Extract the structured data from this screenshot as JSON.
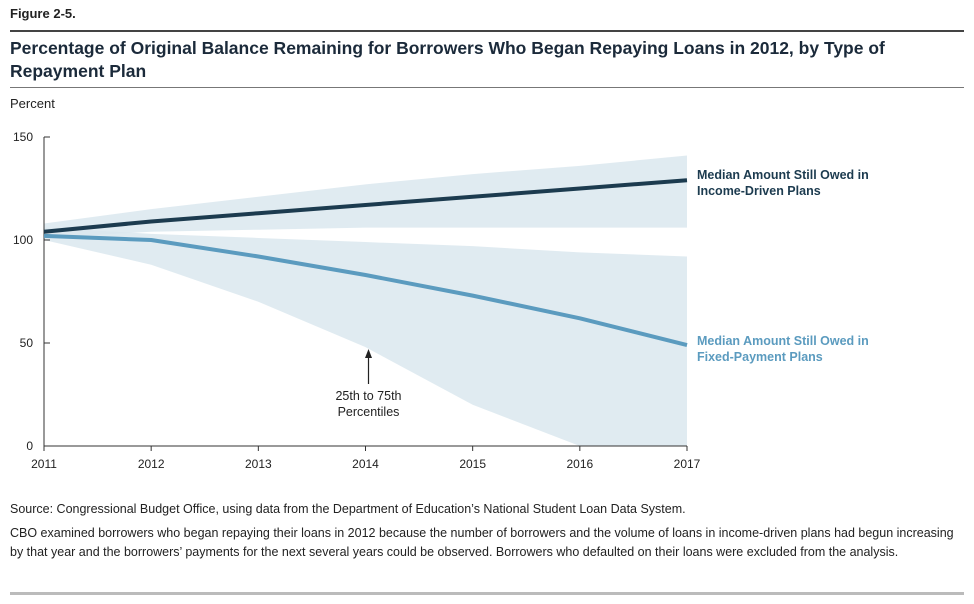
{
  "figure_label": "Figure 2-5.",
  "title": "Percentage of Original Balance Remaining for Borrowers Who Began Repaying Loans in 2012, by Type of Repayment Plan",
  "source": "Source: Congressional Budget Office, using data from the Department of Education’s National Student Loan Data System.",
  "note": "CBO examined borrowers who began repaying their loans in 2012 because the number of borrowers and the volume of loans in income-driven plans had begun increasing by that year and the borrowers’ payments for the next several years could be observed. Borrowers who defaulted on their loans were excluded from the analysis.",
  "colors": {
    "band": "#dbe7ee",
    "income_driven": "#1c3b4f",
    "fixed_payment": "#5b9bbf"
  },
  "chart_data": {
    "type": "line",
    "ylabel": "Percent",
    "xlabel": "",
    "ylim": [
      0,
      150
    ],
    "yticks": [
      0,
      50,
      100,
      150
    ],
    "x": [
      2011,
      2012,
      2013,
      2014,
      2015,
      2016,
      2017
    ],
    "series": [
      {
        "name": "Median Amount Still Owed in Income-Driven Plans",
        "label_lines": [
          "Median Amount Still Owed in",
          "Income-Driven Plans"
        ],
        "values": [
          104,
          109,
          113,
          117,
          121,
          125,
          129
        ],
        "band_upper": [
          108,
          115,
          121,
          127,
          132,
          136,
          141
        ],
        "band_lower": [
          101,
          104,
          105,
          106,
          106,
          106,
          106
        ]
      },
      {
        "name": "Median Amount Still Owed in Fixed-Payment Plans",
        "label_lines": [
          "Median Amount Still Owed in",
          "Fixed-Payment Plans"
        ],
        "values": [
          102,
          100,
          92,
          83,
          73,
          62,
          49
        ],
        "band_upper": [
          106,
          103,
          101,
          99,
          97,
          94,
          92
        ],
        "band_lower": [
          100,
          88,
          70,
          48,
          20,
          0,
          0
        ]
      }
    ],
    "annotation": {
      "lines": [
        "25th to 75th",
        "Percentiles"
      ]
    }
  }
}
